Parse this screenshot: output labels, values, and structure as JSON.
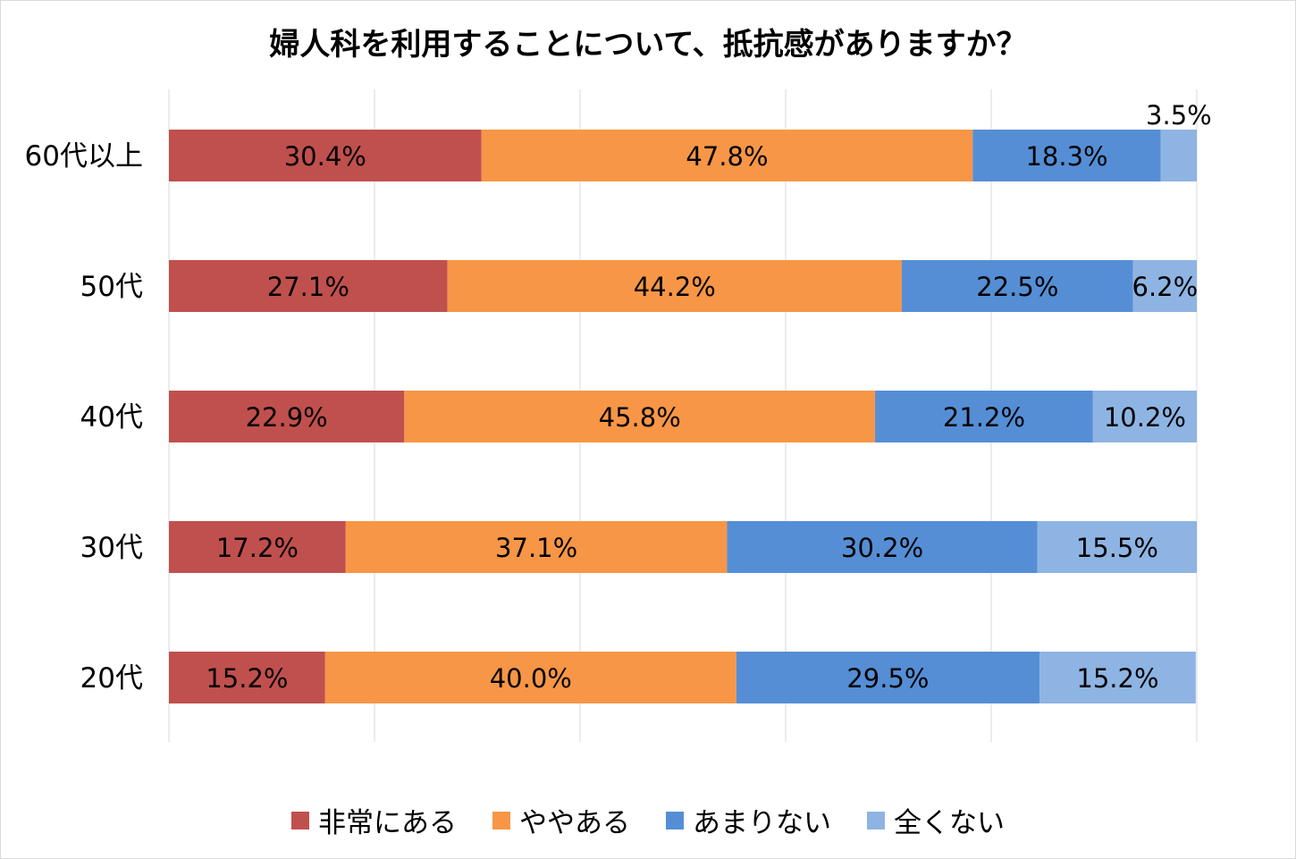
{
  "chart_data": {
    "type": "bar",
    "orientation": "horizontal",
    "stacked": true,
    "title": "婦人科を利用することについて、抵抗感がありますか？",
    "categories": [
      "60代以上",
      "50代",
      "40代",
      "30代",
      "20代"
    ],
    "series": [
      {
        "name": "非常にある",
        "color": "#c0504d",
        "values": [
          30.4,
          27.1,
          22.9,
          17.2,
          15.2
        ],
        "labels": [
          "30.4%",
          "27.1%",
          "22.9%",
          "17.2%",
          "15.2%"
        ]
      },
      {
        "name": "ややある",
        "color": "#f79646",
        "values": [
          47.8,
          44.2,
          45.8,
          37.1,
          40.0
        ],
        "labels": [
          "47.8%",
          "44.2%",
          "45.8%",
          "37.1%",
          "40.0%"
        ]
      },
      {
        "name": "あまりない",
        "color": "#558ed5",
        "values": [
          18.3,
          22.5,
          21.2,
          30.2,
          29.5
        ],
        "labels": [
          "18.3%",
          "22.5%",
          "21.2%",
          "30.2%",
          "29.5%"
        ]
      },
      {
        "name": "全くない",
        "color": "#8eb4e3",
        "values": [
          3.5,
          6.2,
          10.2,
          15.5,
          15.2
        ],
        "labels": [
          "3.5%",
          "6.2%",
          "10.2%",
          "15.5%",
          "15.2%"
        ]
      }
    ],
    "xlim": [
      0,
      100
    ],
    "grid": true,
    "legend_position": "bottom"
  }
}
